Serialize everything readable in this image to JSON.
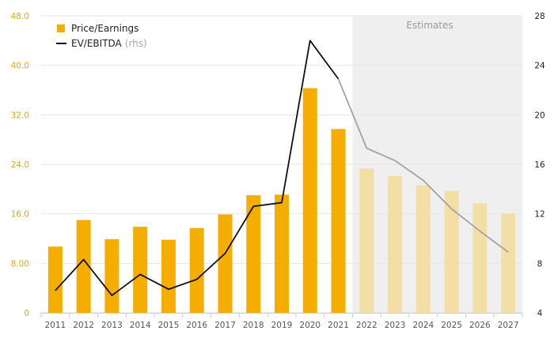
{
  "chart_data": {
    "type": "bar+line",
    "categories": [
      "2011",
      "2012",
      "2013",
      "2014",
      "2015",
      "2016",
      "2017",
      "2018",
      "2019",
      "2020",
      "2021",
      "2022",
      "2023",
      "2024",
      "2025",
      "2026",
      "2027"
    ],
    "estimate_start_index": 11,
    "estimates_label": "Estimates",
    "series": [
      {
        "name": "Price/Earnings",
        "type": "bar",
        "axis": "left",
        "values": [
          10.7,
          15.0,
          11.9,
          13.9,
          11.8,
          13.7,
          15.9,
          19.0,
          19.1,
          36.3,
          29.7,
          23.3,
          22.1,
          20.6,
          19.7,
          17.7,
          16.0
        ]
      },
      {
        "name": "EV/EBITDA",
        "name_suffix": "(rhs)",
        "type": "line",
        "axis": "right",
        "values": [
          5.8,
          8.3,
          5.4,
          7.1,
          5.9,
          6.7,
          8.8,
          12.6,
          12.9,
          26.0,
          22.9,
          17.3,
          16.3,
          14.7,
          12.4,
          10.6,
          8.9
        ]
      }
    ],
    "y_left": {
      "ylim": [
        0,
        48
      ],
      "ticks": [
        "0",
        "8.00",
        "16.0",
        "24.0",
        "32.0",
        "40.0",
        "48.0"
      ],
      "tick_values": [
        0,
        8,
        16,
        24,
        32,
        40,
        48
      ]
    },
    "y_right": {
      "ylim": [
        4,
        28
      ],
      "ticks": [
        "4",
        "8",
        "12",
        "16",
        "20",
        "24",
        "28"
      ],
      "tick_values": [
        4,
        8,
        12,
        16,
        20,
        24,
        28
      ]
    },
    "grid": true,
    "legend": "top-left",
    "colors": {
      "bar": "#f5ad00",
      "bar_estimate": "#f3dfa6",
      "line": "#111111",
      "line_estimate": "#a3a3a3",
      "estimate_bg": "#efefef",
      "grid": "#e6e6e6",
      "left_tick": "#e8a800",
      "right_tick": "#222222",
      "x_tick": "#555555",
      "estimates_text": "#9a9a9a"
    }
  }
}
